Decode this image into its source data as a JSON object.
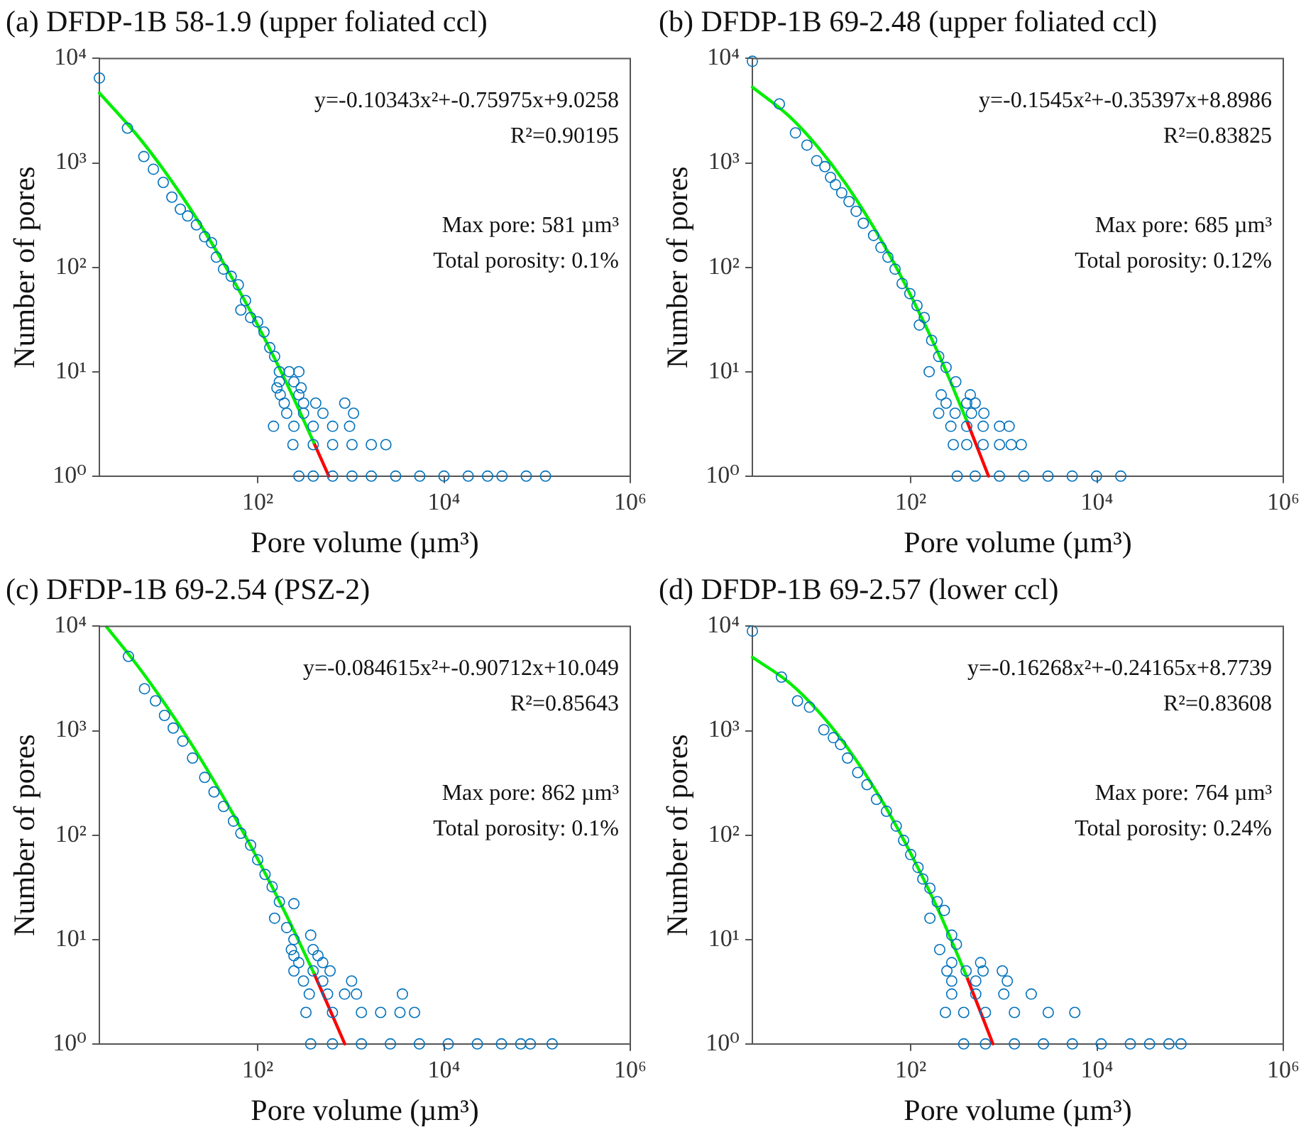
{
  "chart_data": [
    {
      "type": "scatter",
      "title": "(a) DFDP-1B 58-1.9 (upper foliated ccl)",
      "xlabel": "Pore volume (µm³)",
      "ylabel": "Number of pores",
      "log": "xy",
      "grid": false,
      "legend": false,
      "xlim": [
        2,
        1000000
      ],
      "xticks": [
        {
          "value": 100,
          "label": "10²"
        },
        {
          "value": 10000,
          "label": "10⁴"
        },
        {
          "value": 1000000,
          "label": "10⁶"
        }
      ],
      "ylim": [
        1,
        10000
      ],
      "yticks": [
        {
          "value": 1,
          "label": "10⁰"
        },
        {
          "value": 10,
          "label": "10¹"
        },
        {
          "value": 100,
          "label": "10²"
        },
        {
          "value": 1000,
          "label": "10³"
        },
        {
          "value": 10000,
          "label": "10⁴"
        }
      ],
      "annotations": [
        "y=-0.10343x²+-0.75975x+9.0258",
        "R²=0.90195",
        "Max pore: 581 µm³",
        "Total porosity: 0.1%"
      ],
      "series": [
        {
          "type": "scatter",
          "marker": "circle",
          "color": "#0072bd",
          "x": [
            2,
            4,
            6,
            7.6,
            9.7,
            12,
            14.8,
            17.7,
            22,
            27,
            32,
            36,
            43,
            52,
            62,
            74,
            66,
            84,
            100,
            117,
            135,
            152,
            171,
            218,
            277,
            171,
            245,
            161,
            293,
            175,
            277,
            193,
            311,
            420,
            861,
            205,
            311,
            502,
            1070,
            148,
            245,
            395,
            638,
            970,
            239,
            395,
            638,
            1030,
            1660,
            2380,
            277,
            395,
            638,
            1030,
            1660,
            3030,
            5500,
            10000,
            18200,
            29400,
            42000,
            76400,
            123000
          ],
          "values": [
            6500,
            2150,
            1150,
            870,
            650,
            470,
            360,
            310,
            255,
            196,
            172,
            125,
            96,
            82,
            68,
            48,
            39,
            33,
            30,
            24,
            17,
            14,
            10,
            10,
            10,
            8,
            8,
            7,
            7,
            6,
            6,
            5,
            5,
            5,
            5,
            4,
            4,
            4,
            4,
            3,
            3,
            3,
            3,
            3,
            2,
            2,
            2,
            2,
            2,
            2,
            1,
            1,
            1,
            1,
            1,
            1,
            1,
            1,
            1,
            1,
            1,
            1,
            1
          ]
        },
        {
          "type": "line",
          "marker": "none",
          "color": "#00ee00",
          "x": [
            2,
            5,
            10,
            20,
            50,
            100,
            200,
            400
          ],
          "values": [
            4670,
            1870,
            835,
            337,
            87,
            28,
            8.1,
            2.1
          ]
        },
        {
          "type": "line",
          "marker": "none",
          "color": "#ff0000",
          "x": [
            400,
            581
          ],
          "values": [
            2.1,
            1
          ]
        }
      ]
    },
    {
      "type": "scatter",
      "title": "(b) DFDP-1B 69-2.48 (upper foliated ccl)",
      "xlabel": "Pore volume (µm³)",
      "ylabel": "Number of pores",
      "log": "xy",
      "grid": false,
      "legend": false,
      "xlim": [
        2,
        1000000
      ],
      "xticks": [
        {
          "value": 100,
          "label": "10²"
        },
        {
          "value": 10000,
          "label": "10⁴"
        },
        {
          "value": 1000000,
          "label": "10⁶"
        }
      ],
      "ylim": [
        1,
        10000
      ],
      "yticks": [
        {
          "value": 1,
          "label": "10⁰"
        },
        {
          "value": 10,
          "label": "10¹"
        },
        {
          "value": 100,
          "label": "10²"
        },
        {
          "value": 1000,
          "label": "10³"
        },
        {
          "value": 10000,
          "label": "10⁴"
        }
      ],
      "annotations": [
        "y=-0.1545x²+-0.35397x+8.8986",
        "R²=0.83825",
        "Max pore: 685 µm³",
        "Total porosity: 0.12%"
      ],
      "series": [
        {
          "type": "scatter",
          "marker": "circle",
          "color": "#0072bd",
          "x": [
            2,
            3.9,
            5.8,
            7.7,
            9.8,
            12,
            13.8,
            15.6,
            18.2,
            21.8,
            26,
            31,
            40,
            48,
            57,
            68,
            81,
            98,
            117,
            140,
            124,
            168,
            200,
            158,
            240,
            305,
            213,
            437,
            240,
            400,
            493,
            200,
            300,
            450,
            611,
            270,
            400,
            600,
            900,
            1140,
            287,
            400,
            600,
            900,
            1200,
            1540,
            316,
            493,
            897,
            1640,
            2980,
            5420,
            9880,
            18000
          ],
          "values": [
            9400,
            3670,
            1940,
            1480,
            1050,
            920,
            726,
            619,
            517,
            426,
            344,
            264,
            202,
            155,
            125,
            96,
            70,
            56,
            43,
            33,
            28,
            20,
            14,
            10,
            11,
            8,
            6,
            6,
            5,
            5,
            5,
            4,
            4,
            4,
            4,
            3,
            3,
            3,
            3,
            3,
            2,
            2,
            2,
            2,
            2,
            2,
            1,
            1,
            1,
            1,
            1,
            1,
            1,
            1
          ]
        },
        {
          "type": "line",
          "marker": "none",
          "color": "#00ee00",
          "x": [
            2,
            5,
            10,
            20,
            50,
            100,
            200,
            400
          ],
          "values": [
            5320,
            2780,
            1430,
            634,
            172,
            54,
            14.7,
            3.4
          ]
        },
        {
          "type": "line",
          "marker": "none",
          "color": "#ff0000",
          "x": [
            400,
            685
          ],
          "values": [
            3.4,
            1
          ]
        }
      ]
    },
    {
      "type": "scatter",
      "title": "(c) DFDP-1B 69-2.54 (PSZ-2)",
      "xlabel": "Pore volume (µm³)",
      "ylabel": "Number of pores",
      "log": "xy",
      "grid": false,
      "legend": false,
      "xlim": [
        2,
        1000000
      ],
      "xticks": [
        {
          "value": 100,
          "label": "10²"
        },
        {
          "value": 10000,
          "label": "10⁴"
        },
        {
          "value": 1000000,
          "label": "10⁶"
        }
      ],
      "ylim": [
        1,
        10000
      ],
      "yticks": [
        {
          "value": 1,
          "label": "10⁰"
        },
        {
          "value": 10,
          "label": "10¹"
        },
        {
          "value": 100,
          "label": "10²"
        },
        {
          "value": 1000,
          "label": "10³"
        },
        {
          "value": 10000,
          "label": "10⁴"
        }
      ],
      "annotations": [
        "y=-0.084615x²+-0.90712x+10.049",
        "R²=0.85643",
        "Max pore: 862 µm³",
        "Total porosity: 0.1%"
      ],
      "series": [
        {
          "type": "scatter",
          "marker": "circle",
          "color": "#0072bd",
          "x": [
            4.1,
            6.1,
            8,
            10,
            12.4,
            15.7,
            20,
            27,
            34,
            43,
            55,
            66,
            84,
            100,
            120,
            143,
            171,
            245,
            152,
            205,
            245,
            371,
            230,
            394,
            245,
            444,
            276,
            500,
            245,
            394,
            599,
            310,
            500,
            1020,
            358,
            563,
            857,
            1150,
            3580,
            330,
            635,
            1300,
            2090,
            3370,
            4830,
            371,
            635,
            1300,
            2660,
            5440,
            11100,
            22800,
            41400,
            66700,
            84600,
            145000
          ],
          "values": [
            5150,
            2520,
            1930,
            1400,
            1060,
            795,
            547,
            357,
            259,
            188,
            136,
            104,
            80,
            58,
            42,
            32,
            23,
            22,
            16,
            13,
            10,
            11,
            8,
            8,
            7,
            7,
            6,
            6,
            5,
            5,
            5,
            4,
            4,
            4,
            3,
            3,
            3,
            3,
            3,
            2,
            2,
            2,
            2,
            2,
            2,
            1,
            1,
            1,
            1,
            1,
            1,
            1,
            1,
            1,
            1,
            1
          ]
        },
        {
          "type": "line",
          "marker": "none",
          "color": "#00ee00",
          "x": [
            2.4,
            5,
            10,
            20,
            50,
            100,
            200,
            400
          ],
          "values": [
            9800,
            4320,
            1830,
            715,
            182,
            59,
            17.6,
            4.8
          ]
        },
        {
          "type": "line",
          "marker": "none",
          "color": "#ff0000",
          "x": [
            400,
            862
          ],
          "values": [
            4.8,
            1
          ]
        }
      ]
    },
    {
      "type": "scatter",
      "title": "(d) DFDP-1B 69-2.57 (lower ccl)",
      "xlabel": "Pore volume (µm³)",
      "ylabel": "Number of pores",
      "log": "xy",
      "grid": false,
      "legend": false,
      "xlim": [
        2,
        1000000
      ],
      "xticks": [
        {
          "value": 100,
          "label": "10²"
        },
        {
          "value": 10000,
          "label": "10⁴"
        },
        {
          "value": 1000000,
          "label": "10⁶"
        }
      ],
      "ylim": [
        1,
        10000
      ],
      "yticks": [
        {
          "value": 1,
          "label": "10⁰"
        },
        {
          "value": 10,
          "label": "10¹"
        },
        {
          "value": 100,
          "label": "10²"
        },
        {
          "value": 1000,
          "label": "10³"
        },
        {
          "value": 10000,
          "label": "10⁴"
        }
      ],
      "annotations": [
        "y=-0.16268x²+-0.24165x+8.7739",
        "R²=0.83608",
        "Max pore: 764 µm³",
        "Total porosity: 0.24%"
      ],
      "series": [
        {
          "type": "scatter",
          "marker": "circle",
          "color": "#0072bd",
          "x": [
            2,
            4.1,
            6.1,
            8.2,
            11.7,
            14.8,
            17.7,
            21,
            27,
            34,
            43,
            55,
            70,
            84,
            100,
            120,
            135,
            161,
            193,
            230,
            161,
            205,
            276,
            310,
            276,
            563,
            245,
            394,
            599,
            964,
            276,
            500,
            1090,
            276,
            500,
            1000,
            1970,
            236,
            371,
            635,
            1300,
            3000,
            5780,
            371,
            635,
            1300,
            2660,
            5440,
            11100,
            22800,
            36700,
            59200,
            79800
          ],
          "values": [
            9000,
            3260,
            1930,
            1680,
            1020,
            857,
            738,
            547,
            397,
            304,
            220,
            169,
            122,
            89,
            65,
            49,
            38,
            31,
            23,
            19,
            16,
            8,
            11,
            9,
            6,
            6,
            5,
            5,
            5,
            5,
            4,
            4,
            4,
            3,
            3,
            3,
            3,
            2,
            2,
            2,
            2,
            2,
            2,
            1,
            1,
            1,
            1,
            1,
            1,
            1,
            1,
            1,
            1
          ]
        },
        {
          "type": "line",
          "marker": "none",
          "color": "#00ee00",
          "x": [
            2,
            5,
            10,
            20,
            50,
            100,
            200,
            400
          ],
          "values": [
            5050,
            2870,
            1560,
            728,
            208,
            67,
            18.7,
            4.4
          ]
        },
        {
          "type": "line",
          "marker": "none",
          "color": "#ff0000",
          "x": [
            400,
            764
          ],
          "values": [
            4.4,
            1
          ]
        }
      ]
    }
  ]
}
